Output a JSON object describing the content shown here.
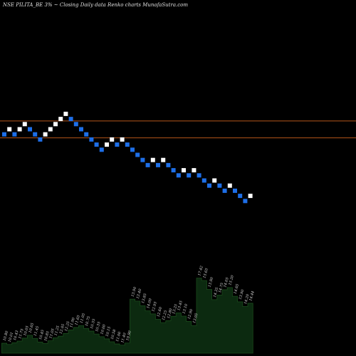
{
  "header": {
    "title": "NSE PILITA_BE 3% ~  Closing Daily data  Renko  charts MunafaSutra.com"
  },
  "colors": {
    "background": "#000000",
    "up_brick": "#ffffff",
    "down_brick": "#1e6fe8",
    "reference_line": "#b5551a",
    "volume_fill": "#0c2a10",
    "volume_line": "#1a4a1c"
  },
  "chart_data": {
    "type": "renko",
    "title": "NSE PILITA_BE 3% ~  Closing Daily data  Renko  charts MunafaSutra.com",
    "box_size_label": "3%",
    "brick_levels": [
      4,
      5,
      4,
      5,
      6,
      5,
      4,
      3,
      4,
      5,
      6,
      7,
      8,
      7,
      6,
      5,
      4,
      3,
      2,
      1,
      2,
      3,
      2,
      3,
      2,
      1,
      0,
      -1,
      -2,
      -1,
      -2,
      -1,
      -2,
      -3,
      -4,
      -3,
      -4,
      -3,
      -4,
      -5,
      -6,
      -5,
      -6,
      -7,
      -6,
      -7,
      -8,
      -9,
      -8
    ],
    "brick_directions": [
      "down",
      "up",
      "down",
      "up",
      "up",
      "down",
      "down",
      "down",
      "up",
      "up",
      "up",
      "up",
      "up",
      "down",
      "down",
      "down",
      "down",
      "down",
      "down",
      "down",
      "up",
      "up",
      "down",
      "up",
      "down",
      "down",
      "down",
      "down",
      "down",
      "up",
      "down",
      "up",
      "down",
      "down",
      "down",
      "up",
      "down",
      "up",
      "down",
      "down",
      "down",
      "up",
      "down",
      "down",
      "up",
      "down",
      "down",
      "down",
      "up"
    ],
    "reference_levels": [
      6.2,
      2.9
    ],
    "volume": {
      "values": [
        4.1,
        3.6,
        4.3,
        5.0,
        6.2,
        7.4,
        6.1,
        4.6,
        4.0,
        5.1,
        6.3,
        7.0,
        8.1,
        9.6,
        10.6,
        11.4,
        10.2,
        9.1,
        7.9,
        6.8,
        5.9,
        4.7,
        3.8,
        3.3,
        4.2,
        22.3,
        21.5,
        19.6,
        17.5,
        16.2,
        14.0,
        12.6,
        13.4,
        15.2,
        16.6,
        15.3,
        13.1,
        11.4,
        31.0,
        30.0,
        26.3,
        22.1,
        24.0,
        26.2,
        27.1,
        23.5,
        21.2,
        19.3,
        20.6
      ],
      "labels": [
        "10.80",
        "10.01",
        "10.43",
        "11.75",
        "10.05",
        "10.65",
        "11.45",
        "10.45",
        "10.85",
        "11.05",
        "11.25",
        "12.05",
        "12.25",
        "11.90",
        "11.65",
        "11.05",
        "10.75",
        "10.55",
        "10.35",
        "10.00",
        "10.15",
        "10.58",
        "11.00",
        "11.40",
        "10.90",
        "13.90",
        "13.40",
        "13.85",
        "14.00",
        "12.95",
        "12.60",
        "12.25",
        "12.80",
        "13.25",
        "13.45",
        "13.10",
        "12.90",
        "13.05",
        "17.42",
        "15.65",
        "13.90",
        "14.35",
        "14.75",
        "14.05",
        "15.20",
        "14.65",
        "13.90",
        "14.20",
        "14.44"
      ]
    }
  }
}
